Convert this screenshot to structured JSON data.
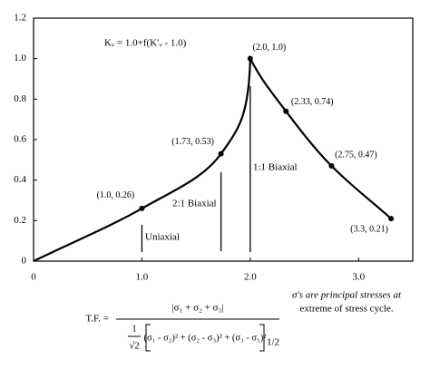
{
  "chart_data": {
    "type": "line",
    "formula": "Kᵥ = 1.0+f(K′ᵥ - 1.0)",
    "x": [
      0,
      1.0,
      1.73,
      2.0,
      2.33,
      2.75,
      3.3
    ],
    "series": [
      {
        "color": "#000000",
        "values": [
          0,
          0.26,
          0.53,
          1.0,
          0.74,
          0.47,
          0.21
        ],
        "value_labels": [
          null,
          "(1.0, 0.26)",
          "(1.73, 0.53)",
          "(2.0, 1.0)",
          "(2.33, 0.74)",
          "(2.75, 0.47)",
          "(3.3, 0.21)"
        ]
      }
    ],
    "xlim": [
      0,
      3.5
    ],
    "ylim": [
      0,
      1.2
    ],
    "xticks": [
      0,
      {
        "value": 1,
        "label": "1.0"
      },
      {
        "value": 2,
        "label": "2.0"
      },
      {
        "value": 3,
        "label": "3.0"
      }
    ],
    "yticks": [
      0,
      0.2,
      0.4,
      0.6,
      0.8,
      {
        "value": 1,
        "label": "1.0"
      },
      1.2
    ],
    "grid": false,
    "annotations": [
      "Uniaxial",
      "2:1 Biaxial",
      "1:1 Biaxial"
    ]
  },
  "equation": {
    "lhs": "T.F. =",
    "numerator": "|σ₁ + σ₂ + σ₃|",
    "coef_num": "1",
    "coef_den": "√2",
    "denominator": "(σ₁ - σ₂)² + (σ₂ - σ₃)² + (σ₃ - σ₁)²",
    "exponent": "1/2"
  },
  "note": [
    "σ's are principal stresses at",
    "extreme of stress cycle."
  ]
}
